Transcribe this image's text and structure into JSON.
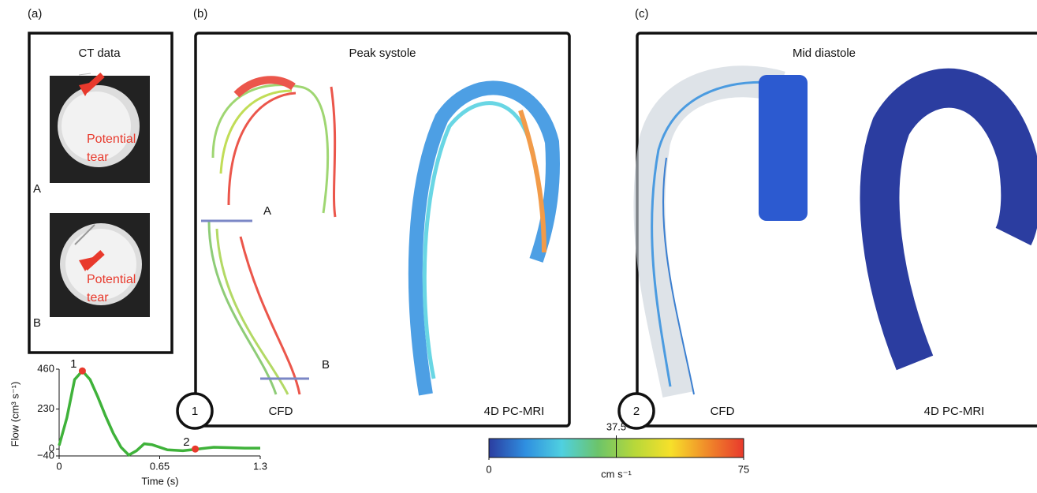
{
  "panels": {
    "a": {
      "label": "(a)",
      "title": "CT data",
      "images": [
        {
          "annotation_lines": [
            "Potential",
            "tear"
          ],
          "label": "A"
        },
        {
          "annotation_lines": [
            "Potential",
            "tear"
          ],
          "label": "B"
        }
      ]
    },
    "b": {
      "label": "(b)",
      "title": "Peak systole",
      "number": "1",
      "left": "CFD",
      "right": "4D PC-MRI",
      "cut_labels": [
        "A",
        "B"
      ]
    },
    "c": {
      "label": "(c)",
      "title": "Mid diastole",
      "number": "2",
      "left": "CFD",
      "right": "4D PC-MRI"
    }
  },
  "chart_data": {
    "type": "line",
    "x_label": "Time (s)",
    "y_label": "Flow (cm³ s⁻¹)",
    "x": [
      0,
      0.05,
      0.1,
      0.15,
      0.2,
      0.25,
      0.3,
      0.35,
      0.4,
      0.45,
      0.5,
      0.55,
      0.6,
      0.7,
      0.8,
      0.9,
      1.0,
      1.1,
      1.2,
      1.3
    ],
    "series": [
      {
        "color": "#3fb23a",
        "values": [
          20,
          180,
          400,
          450,
          400,
          300,
          190,
          90,
          10,
          -35,
          -10,
          30,
          25,
          -5,
          -10,
          0,
          10,
          8,
          5,
          5
        ]
      }
    ],
    "markers": [
      {
        "label": "1",
        "x": 0.15,
        "y": 450,
        "color": "#e8392c"
      },
      {
        "label": "2",
        "x": 0.88,
        "y": 0,
        "color": "#e8392c"
      }
    ],
    "xlim": [
      0,
      1.3
    ],
    "xticks": [
      0,
      0.65,
      1.3
    ],
    "ylim": [
      -40,
      460
    ],
    "yticks": [
      {
        "value": -40,
        "label": "−40"
      },
      0,
      230,
      460
    ]
  },
  "colorbar": {
    "lim": [
      0,
      75
    ],
    "ticks": [
      0,
      37.5,
      75
    ],
    "label": "cm s⁻¹",
    "colors": [
      "#2b3da0",
      "#2f8fe0",
      "#4fd0e0",
      "#6cc46a",
      "#b7d83a",
      "#f7e02a",
      "#f08a2a",
      "#e8392c"
    ]
  }
}
